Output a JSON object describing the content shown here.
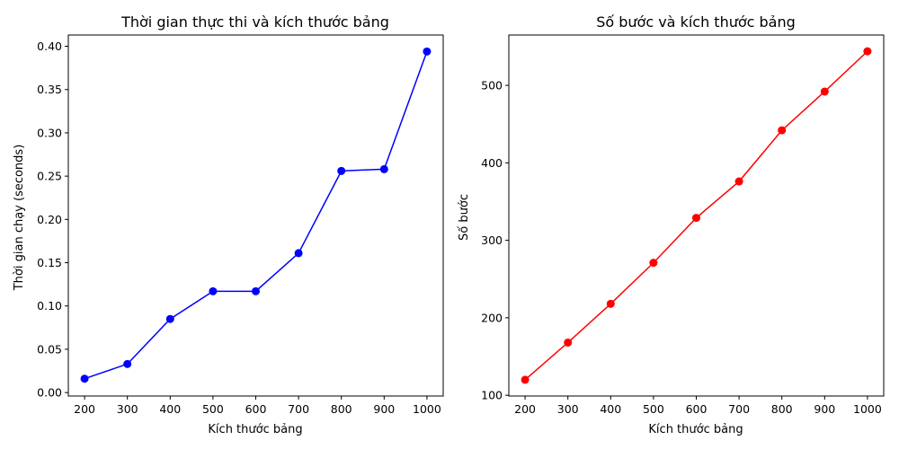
{
  "chart_data": [
    {
      "type": "line",
      "title": "Thời gian thực thi và kích thước bảng",
      "xlabel": "Kích thước bảng",
      "ylabel": "Thời gian chạy (seconds)",
      "x": [
        200,
        300,
        400,
        500,
        600,
        700,
        800,
        900,
        1000
      ],
      "series": [
        {
          "values": [
            0.016,
            0.033,
            0.085,
            0.117,
            0.117,
            0.161,
            0.256,
            0.258,
            0.394
          ],
          "color": "#0000ff"
        }
      ],
      "xlim": [
        162,
        1038
      ],
      "ylim": [
        -0.004,
        0.413
      ],
      "xticks": [
        200,
        300,
        400,
        500,
        600,
        700,
        800,
        900,
        1000
      ],
      "xtick_labels": [
        "200",
        "300",
        "400",
        "500",
        "600",
        "700",
        "800",
        "900",
        "1000"
      ],
      "yticks": [
        0.0,
        0.05,
        0.1,
        0.15,
        0.2,
        0.25,
        0.3,
        0.35,
        0.4
      ],
      "ytick_labels": [
        "0.00",
        "0.05",
        "0.10",
        "0.15",
        "0.20",
        "0.25",
        "0.30",
        "0.35",
        "0.40"
      ],
      "grid": false,
      "marker": "circle"
    },
    {
      "type": "line",
      "title": "Số bước và kích thước bảng",
      "xlabel": "Kích thước bảng",
      "ylabel": "Số bước",
      "x": [
        200,
        300,
        400,
        500,
        600,
        700,
        800,
        900,
        1000
      ],
      "series": [
        {
          "values": [
            120,
            168,
            218,
            271,
            329,
            376,
            442,
            492,
            544
          ],
          "color": "#ff0000"
        }
      ],
      "xlim": [
        162,
        1038
      ],
      "ylim": [
        99,
        565
      ],
      "xticks": [
        200,
        300,
        400,
        500,
        600,
        700,
        800,
        900,
        1000
      ],
      "xtick_labels": [
        "200",
        "300",
        "400",
        "500",
        "600",
        "700",
        "800",
        "900",
        "1000"
      ],
      "yticks": [
        100,
        200,
        300,
        400,
        500
      ],
      "ytick_labels": [
        "100",
        "200",
        "300",
        "400",
        "500"
      ],
      "grid": false,
      "marker": "circle"
    }
  ]
}
